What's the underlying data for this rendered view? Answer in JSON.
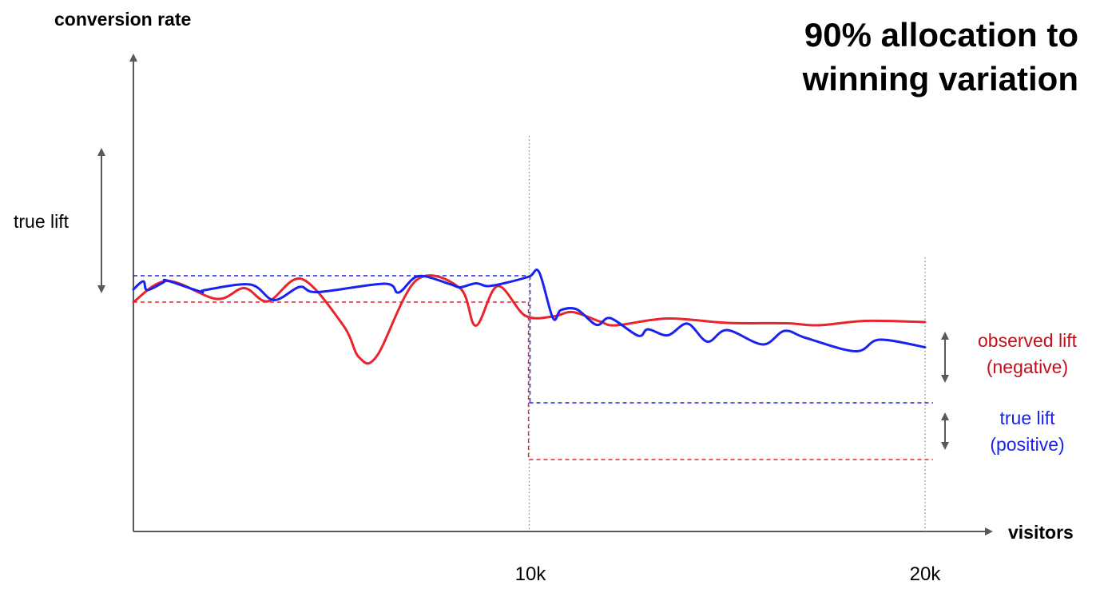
{
  "chart_data": {
    "type": "line",
    "title_lines": [
      "90% allocation to",
      "winning variation"
    ],
    "ylabel": "conversion rate",
    "xlabel": "visitors",
    "xticks": [
      {
        "value": 10000,
        "label": "10k"
      },
      {
        "value": 20000,
        "label": "20k"
      }
    ],
    "xlim": [
      0,
      20000
    ],
    "colors": {
      "blue": "#1a23ee",
      "red": "#e8242c"
    },
    "series": [
      {
        "color": "blue",
        "x": [
          0,
          250,
          350,
          750,
          850,
          1700,
          1800,
          2950,
          3550,
          4200,
          4650,
          6350,
          6700,
          7200,
          8000,
          8250,
          8650,
          8950,
          9400,
          10000,
          10250,
          10600,
          10800,
          11200,
          11700,
          12050,
          12750,
          13000,
          13500,
          14000,
          14500,
          15000,
          15900,
          16450,
          17000,
          18250,
          18850,
          20000
        ],
        "y": [
          0.32,
          0.52,
          0.3,
          0.49,
          0.54,
          0.26,
          0.3,
          0.44,
          0.05,
          0.38,
          0.25,
          0.46,
          0.24,
          0.65,
          0.45,
          0.37,
          0.47,
          0.4,
          0.48,
          0.64,
          0.75,
          -0.4,
          -0.2,
          -0.18,
          -0.57,
          -0.4,
          -0.84,
          -0.68,
          -0.83,
          -0.54,
          -0.99,
          -0.7,
          -1.06,
          -0.72,
          -0.9,
          -1.23,
          -0.94,
          -1.13
        ]
      },
      {
        "color": "red",
        "x": [
          0,
          850,
          2100,
          2800,
          3400,
          4250,
          5300,
          5700,
          6150,
          7150,
          8250,
          8650,
          9200,
          9900,
          10600,
          11100,
          11800,
          12200,
          13500,
          15000,
          16500,
          17300,
          18500,
          20000
        ],
        "y": [
          0.0,
          0.53,
          0.08,
          0.35,
          0.02,
          0.58,
          -0.58,
          -1.38,
          -1.35,
          0.55,
          0.35,
          -0.59,
          0.4,
          -0.34,
          -0.36,
          -0.25,
          -0.49,
          -0.58,
          -0.41,
          -0.52,
          -0.53,
          -0.58,
          -0.47,
          -0.5
        ]
      }
    ],
    "reference_lines": [
      {
        "color": "blue",
        "level": 0.66,
        "x_from": 0,
        "x_to": 10000
      },
      {
        "color": "red",
        "level": 0.0,
        "x_from": 0,
        "x_to": 10000
      },
      {
        "color": "blue",
        "level": -2.52,
        "x_from": 10000,
        "x_to": 20200
      },
      {
        "color": "red",
        "level": -3.94,
        "x_from": 10000,
        "x_to": 20200
      }
    ],
    "annotations": {
      "left_label": "true lift",
      "observed_lines": [
        "observed lift",
        "(negative)"
      ],
      "observed_color": "red",
      "true_lines": [
        "true lift",
        "(positive)"
      ],
      "true_color": "blue"
    }
  }
}
